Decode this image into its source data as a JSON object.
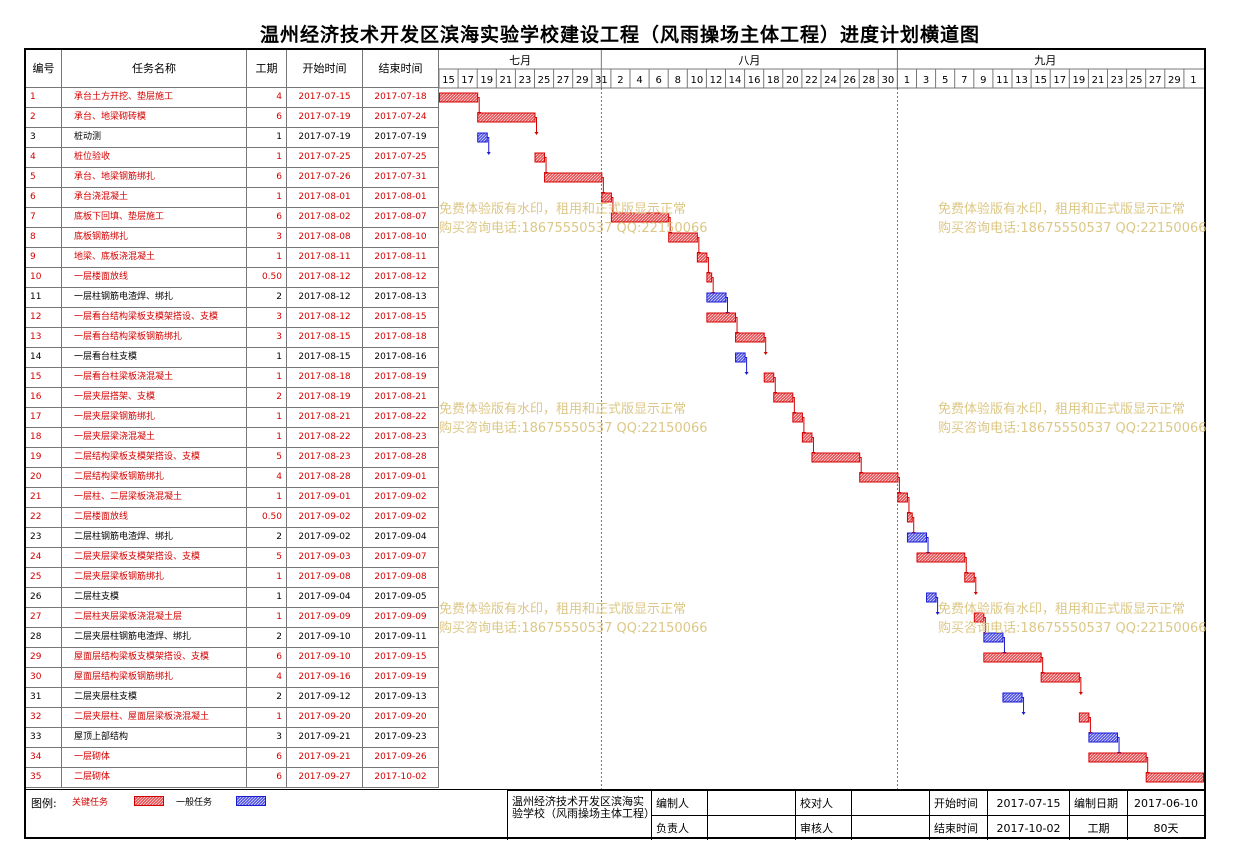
{
  "title": "温州经济技术开发区滨海实验学校建设工程（风雨操场主体工程）进度计划横道图",
  "headers": {
    "no": "编号",
    "name": "任务名称",
    "dur": "工期",
    "start": "开始时间",
    "end": "结束时间"
  },
  "months": [
    {
      "label": "七月",
      "start": "2017-07-15",
      "end": "2017-07-31"
    },
    {
      "label": "八月",
      "start": "2017-08-01",
      "end": "2017-08-31"
    },
    {
      "label": "九月",
      "start": "2017-09-01",
      "end": "2017-10-01"
    }
  ],
  "day_ticks": [
    "15",
    "17",
    "19",
    "21",
    "23",
    "25",
    "27",
    "29",
    "31",
    "2",
    "4",
    "6",
    "8",
    "10",
    "12",
    "14",
    "16",
    "18",
    "20",
    "22",
    "24",
    "26",
    "28",
    "30",
    "1",
    "3",
    "5",
    "7",
    "9",
    "11",
    "13",
    "15",
    "17",
    "19",
    "21",
    "23",
    "25",
    "27",
    "29",
    "1"
  ],
  "colors": {
    "critical": "#d40000",
    "normal": "#1a1ad0",
    "critical_fill": "#e8575a",
    "normal_fill": "#5a5ae8",
    "watermark": "#d9c27a"
  },
  "watermark": {
    "line1": "免费体验版有水印，租用和正式版显示正常",
    "line2": "购买咨询电话:18675550537 QQ:22150066"
  },
  "chart_data": {
    "type": "gantt",
    "x_range": [
      "2017-07-15",
      "2017-10-02"
    ],
    "tasks": [
      {
        "no": "1",
        "name": "承台土方开挖、垫层施工",
        "dur": "4",
        "start": "2017-07-15",
        "end": "2017-07-18",
        "critical": true
      },
      {
        "no": "2",
        "name": "承台、地梁砌砖模",
        "dur": "6",
        "start": "2017-07-19",
        "end": "2017-07-24",
        "critical": true
      },
      {
        "no": "3",
        "name": "桩动测",
        "dur": "1",
        "start": "2017-07-19",
        "end": "2017-07-19",
        "critical": false
      },
      {
        "no": "4",
        "name": "桩位验收",
        "dur": "1",
        "start": "2017-07-25",
        "end": "2017-07-25",
        "critical": true
      },
      {
        "no": "5",
        "name": "承台、地梁钢筋绑扎",
        "dur": "6",
        "start": "2017-07-26",
        "end": "2017-07-31",
        "critical": true
      },
      {
        "no": "6",
        "name": "承台浇混凝土",
        "dur": "1",
        "start": "2017-08-01",
        "end": "2017-08-01",
        "critical": true
      },
      {
        "no": "7",
        "name": "底板下回填、垫层施工",
        "dur": "6",
        "start": "2017-08-02",
        "end": "2017-08-07",
        "critical": true
      },
      {
        "no": "8",
        "name": "底板钢筋绑扎",
        "dur": "3",
        "start": "2017-08-08",
        "end": "2017-08-10",
        "critical": true
      },
      {
        "no": "9",
        "name": "地梁、底板浇混凝土",
        "dur": "1",
        "start": "2017-08-11",
        "end": "2017-08-11",
        "critical": true
      },
      {
        "no": "10",
        "name": "一层楼面放线",
        "dur": "0.50",
        "start": "2017-08-12",
        "end": "2017-08-12",
        "critical": true
      },
      {
        "no": "11",
        "name": "一层柱钢筋电渣焊、绑扎",
        "dur": "2",
        "start": "2017-08-12",
        "end": "2017-08-13",
        "critical": false
      },
      {
        "no": "12",
        "name": "一层看台结构梁板支模架搭设、支模",
        "dur": "3",
        "start": "2017-08-12",
        "end": "2017-08-15",
        "critical": true
      },
      {
        "no": "13",
        "name": "一层看台结构梁板钢筋绑扎",
        "dur": "3",
        "start": "2017-08-15",
        "end": "2017-08-18",
        "critical": true
      },
      {
        "no": "14",
        "name": "一层看台柱支模",
        "dur": "1",
        "start": "2017-08-15",
        "end": "2017-08-16",
        "critical": false
      },
      {
        "no": "15",
        "name": "一层看台柱梁板浇混凝土",
        "dur": "1",
        "start": "2017-08-18",
        "end": "2017-08-19",
        "critical": true
      },
      {
        "no": "16",
        "name": "一层夹层搭架、支模",
        "dur": "2",
        "start": "2017-08-19",
        "end": "2017-08-21",
        "critical": true
      },
      {
        "no": "17",
        "name": "一层夹层梁钢筋绑扎",
        "dur": "1",
        "start": "2017-08-21",
        "end": "2017-08-22",
        "critical": true
      },
      {
        "no": "18",
        "name": "一层夹层梁浇混凝土",
        "dur": "1",
        "start": "2017-08-22",
        "end": "2017-08-23",
        "critical": true
      },
      {
        "no": "19",
        "name": "二层结构梁板支模架搭设、支模",
        "dur": "5",
        "start": "2017-08-23",
        "end": "2017-08-28",
        "critical": true
      },
      {
        "no": "20",
        "name": "二层结构梁板钢筋绑扎",
        "dur": "4",
        "start": "2017-08-28",
        "end": "2017-09-01",
        "critical": true
      },
      {
        "no": "21",
        "name": "一层柱、二层梁板浇混凝土",
        "dur": "1",
        "start": "2017-09-01",
        "end": "2017-09-02",
        "critical": true
      },
      {
        "no": "22",
        "name": "二层楼面放线",
        "dur": "0.50",
        "start": "2017-09-02",
        "end": "2017-09-02",
        "critical": true
      },
      {
        "no": "23",
        "name": "二层柱钢筋电渣焊、绑扎",
        "dur": "2",
        "start": "2017-09-02",
        "end": "2017-09-04",
        "critical": false
      },
      {
        "no": "24",
        "name": "二层夹层梁板支模架搭设、支模",
        "dur": "5",
        "start": "2017-09-03",
        "end": "2017-09-07",
        "critical": true
      },
      {
        "no": "25",
        "name": "二层夹层梁板钢筋绑扎",
        "dur": "1",
        "start": "2017-09-08",
        "end": "2017-09-08",
        "critical": true
      },
      {
        "no": "26",
        "name": "二层柱支模",
        "dur": "1",
        "start": "2017-09-04",
        "end": "2017-09-05",
        "critical": false
      },
      {
        "no": "27",
        "name": "二层柱夹层梁板浇混凝土层",
        "dur": "1",
        "start": "2017-09-09",
        "end": "2017-09-09",
        "critical": true
      },
      {
        "no": "28",
        "name": "二层夹层柱钢筋电渣焊、绑扎",
        "dur": "2",
        "start": "2017-09-10",
        "end": "2017-09-11",
        "critical": false
      },
      {
        "no": "29",
        "name": "屋面层结构梁板支模架搭设、支模",
        "dur": "6",
        "start": "2017-09-10",
        "end": "2017-09-15",
        "critical": true
      },
      {
        "no": "30",
        "name": "屋面层结构梁板钢筋绑扎",
        "dur": "4",
        "start": "2017-09-16",
        "end": "2017-09-19",
        "critical": true
      },
      {
        "no": "31",
        "name": "二层夹层柱支模",
        "dur": "2",
        "start": "2017-09-12",
        "end": "2017-09-13",
        "critical": false
      },
      {
        "no": "32",
        "name": "二层夹层柱、屋面层梁板浇混凝土",
        "dur": "1",
        "start": "2017-09-20",
        "end": "2017-09-20",
        "critical": true
      },
      {
        "no": "33",
        "name": "屋顶上部结构",
        "dur": "3",
        "start": "2017-09-21",
        "end": "2017-09-23",
        "critical": false
      },
      {
        "no": "34",
        "name": "一层砌体",
        "dur": "6",
        "start": "2017-09-21",
        "end": "2017-09-26",
        "critical": true
      },
      {
        "no": "35",
        "name": "二层砌体",
        "dur": "6",
        "start": "2017-09-27",
        "end": "2017-10-02",
        "critical": true
      }
    ]
  },
  "footer": {
    "legend_label": "图例:",
    "legend_critical": "关键任务",
    "legend_normal": "一般任务",
    "project": "温州经济技术开发区滨海实验学校（风雨操场主体工程）",
    "compiler_label": "编制人",
    "checker_label": "校对人",
    "start_label": "开始时间",
    "start_value": "2017-07-15",
    "date_label": "编制日期",
    "date_value": "2017-06-10",
    "owner_label": "负责人",
    "reviewer_label": "审核人",
    "end_label": "结束时间",
    "end_value": "2017-10-02",
    "duration_label": "工期",
    "duration_value": "80天"
  }
}
